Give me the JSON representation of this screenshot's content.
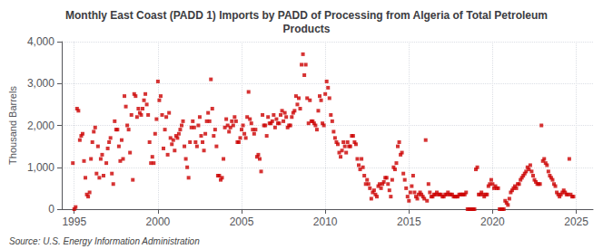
{
  "chart_data": {
    "type": "scatter",
    "title": "Monthly East Coast (PADD 1) Imports by PADD of Processing from Algeria of Total Petroleum\nProducts",
    "ylabel": "Thousand Barrels",
    "annotations": [
      "Source: U.S. Energy Information Administration"
    ],
    "color": "#cc0000",
    "marker": "square",
    "grid": true,
    "xlim": [
      1994.25,
      2026.0
    ],
    "ylim": [
      0,
      4000
    ],
    "xticks": [
      1995,
      2000,
      2005,
      2010,
      2015,
      2020,
      2025
    ],
    "yticks": [
      0,
      {
        "value": 1000,
        "label": "1,000"
      },
      {
        "value": 2000,
        "label": "2,000"
      },
      {
        "value": 3000,
        "label": "3,000"
      },
      {
        "value": 4000,
        "label": "4,000"
      }
    ],
    "x": [
      1994.917,
      1995.0,
      1995.083,
      1995.167,
      1995.25,
      1995.333,
      1995.417,
      1995.5,
      1995.583,
      1995.667,
      1995.75,
      1995.833,
      1995.917,
      1996.0,
      1996.083,
      1996.167,
      1996.25,
      1996.333,
      1996.417,
      1996.5,
      1996.583,
      1996.667,
      1996.75,
      1996.917,
      1997.0,
      1997.083,
      1997.167,
      1997.25,
      1997.333,
      1997.417,
      1997.5,
      1997.583,
      1997.667,
      1997.75,
      1997.833,
      1997.917,
      1998.0,
      1998.083,
      1998.167,
      1998.25,
      1998.333,
      1998.417,
      1998.5,
      1998.583,
      1998.667,
      1998.75,
      1998.833,
      1998.917,
      1999.0,
      1999.083,
      1999.167,
      1999.25,
      1999.333,
      1999.417,
      1999.5,
      1999.583,
      1999.667,
      1999.75,
      1999.833,
      1999.917,
      2000.0,
      2000.083,
      2000.167,
      2000.25,
      2000.333,
      2000.417,
      2000.5,
      2000.583,
      2000.667,
      2000.75,
      2000.833,
      2000.917,
      2001.0,
      2001.083,
      2001.167,
      2001.25,
      2001.333,
      2001.417,
      2001.5,
      2001.583,
      2001.667,
      2001.75,
      2001.833,
      2001.917,
      2002.0,
      2002.083,
      2002.167,
      2002.25,
      2002.333,
      2002.417,
      2002.5,
      2002.583,
      2002.667,
      2002.75,
      2002.833,
      2002.917,
      2003.0,
      2003.083,
      2003.167,
      2003.25,
      2003.333,
      2003.417,
      2003.5,
      2003.583,
      2003.667,
      2003.75,
      2003.833,
      2003.917,
      2004.0,
      2004.083,
      2004.167,
      2004.25,
      2004.333,
      2004.417,
      2004.5,
      2004.583,
      2004.667,
      2004.75,
      2004.833,
      2004.917,
      2005.0,
      2005.083,
      2005.167,
      2005.25,
      2005.333,
      2005.417,
      2005.5,
      2005.583,
      2005.667,
      2005.75,
      2005.833,
      2005.917,
      2006.0,
      2006.083,
      2006.167,
      2006.25,
      2006.333,
      2006.417,
      2006.5,
      2006.583,
      2006.667,
      2006.75,
      2006.833,
      2006.917,
      2007.0,
      2007.083,
      2007.167,
      2007.25,
      2007.333,
      2007.417,
      2007.5,
      2007.583,
      2007.667,
      2007.75,
      2007.833,
      2007.917,
      2008.0,
      2008.083,
      2008.167,
      2008.25,
      2008.333,
      2008.417,
      2008.5,
      2008.583,
      2008.667,
      2008.75,
      2008.833,
      2008.917,
      2009.0,
      2009.083,
      2009.167,
      2009.25,
      2009.333,
      2009.417,
      2009.5,
      2009.583,
      2009.667,
      2009.75,
      2009.833,
      2009.917,
      2010.0,
      2010.083,
      2010.167,
      2010.25,
      2010.333,
      2010.417,
      2010.5,
      2010.583,
      2010.667,
      2010.75,
      2010.833,
      2010.917,
      2011.0,
      2011.083,
      2011.167,
      2011.25,
      2011.333,
      2011.417,
      2011.5,
      2011.583,
      2011.667,
      2011.75,
      2011.833,
      2011.917,
      2012.0,
      2012.083,
      2012.167,
      2012.25,
      2012.333,
      2012.417,
      2012.5,
      2012.583,
      2012.667,
      2012.75,
      2012.833,
      2012.917,
      2013.0,
      2013.083,
      2013.167,
      2013.25,
      2013.333,
      2013.417,
      2013.5,
      2013.583,
      2013.667,
      2013.75,
      2013.833,
      2013.917,
      2014.0,
      2014.083,
      2014.167,
      2014.25,
      2014.333,
      2014.417,
      2014.5,
      2014.583,
      2014.667,
      2014.75,
      2014.833,
      2014.917,
      2015.0,
      2015.083,
      2015.167,
      2015.25,
      2015.333,
      2015.417,
      2015.5,
      2015.583,
      2015.667,
      2015.75,
      2015.833,
      2015.917,
      2016.0,
      2016.083,
      2016.167,
      2016.25,
      2016.333,
      2016.417,
      2016.5,
      2016.583,
      2016.667,
      2016.75,
      2016.833,
      2016.917,
      2017.0,
      2017.083,
      2017.167,
      2017.25,
      2017.333,
      2017.417,
      2017.5,
      2017.583,
      2017.667,
      2017.75,
      2017.833,
      2017.917,
      2018.0,
      2018.083,
      2018.167,
      2018.25,
      2018.333,
      2018.417,
      2018.5,
      2018.583,
      2018.667,
      2018.75,
      2018.833,
      2018.917,
      2019.0,
      2019.083,
      2019.167,
      2019.25,
      2019.333,
      2019.417,
      2019.5,
      2019.583,
      2019.667,
      2019.75,
      2019.833,
      2019.917,
      2020.0,
      2020.083,
      2020.167,
      2020.25,
      2020.333,
      2020.417,
      2020.5,
      2020.583,
      2020.667,
      2020.75,
      2020.833,
      2020.917,
      2021.0,
      2021.083,
      2021.167,
      2021.25,
      2021.333,
      2021.417,
      2021.5,
      2021.583,
      2021.667,
      2021.75,
      2021.833,
      2021.917,
      2022.0,
      2022.083,
      2022.167,
      2022.25,
      2022.333,
      2022.417,
      2022.5,
      2022.583,
      2022.667,
      2022.75,
      2022.833,
      2022.917,
      2023.0,
      2023.083,
      2023.167,
      2023.25,
      2023.333,
      2023.417,
      2023.5,
      2023.583,
      2023.667,
      2023.75,
      2023.833,
      2023.917,
      2024.0,
      2024.083,
      2024.167,
      2024.25,
      2024.333,
      2024.417,
      2024.5,
      2024.583,
      2024.667,
      2024.75,
      2024.833
    ],
    "values": [
      1100,
      0,
      50,
      2400,
      2350,
      1650,
      1750,
      1800,
      1150,
      750,
      350,
      300,
      400,
      1200,
      1600,
      1850,
      1950,
      850,
      1500,
      750,
      1200,
      1300,
      800,
      1100,
      1450,
      1600,
      1700,
      850,
      600,
      2100,
      1900,
      1900,
      1500,
      1150,
      1650,
      1200,
      2700,
      2450,
      2000,
      1900,
      1350,
      2250,
      700,
      2750,
      2700,
      2200,
      2400,
      2300,
      2250,
      2400,
      2600,
      2750,
      2500,
      2250,
      1600,
      1100,
      1250,
      1100,
      1800,
      2150,
      3050,
      2600,
      2700,
      2250,
      1450,
      1900,
      2200,
      1300,
      2300,
      1700,
      1550,
      1650,
      1400,
      1750,
      1700,
      1800,
      1900,
      2000,
      2100,
      1500,
      1200,
      1000,
      750,
      1600,
      1950,
      2100,
      1950,
      1600,
      1500,
      2000,
      2200,
      1750,
      1600,
      1400,
      1800,
      2100,
      2300,
      2100,
      3100,
      2400,
      1750,
      1900,
      1500,
      800,
      800,
      700,
      750,
      1200,
      1950,
      2150,
      2000,
      1850,
      1950,
      2100,
      2000,
      2200,
      2100,
      1600,
      1600,
      1700,
      1900,
      2000,
      1800,
      1700,
      2200,
      2800,
      2150,
      2050,
      1900,
      1800,
      1900,
      1250,
      1300,
      1200,
      900,
      2250,
      2000,
      2000,
      1750,
      2200,
      2050,
      2050,
      2100,
      2250,
      1950,
      2150,
      2050,
      2050,
      2250,
      2350,
      2100,
      2300,
      2200,
      1950,
      2000,
      2000,
      2200,
      2300,
      2350,
      2700,
      2500,
      2650,
      2400,
      3450,
      3700,
      3200,
      3450,
      2650,
      2050,
      2600,
      2100,
      2100,
      2050,
      2000,
      1900,
      2350,
      2700,
      2600,
      2050,
      2000,
      2750,
      3050,
      2900,
      2650,
      2250,
      2100,
      1850,
      1700,
      1600,
      1550,
      1350,
      1250,
      1400,
      1600,
      1500,
      1350,
      1600,
      1500,
      1500,
      1750,
      1750,
      1600,
      1550,
      1200,
      1050,
      950,
      1200,
      1000,
      800,
      600,
      700,
      600,
      500,
      250,
      400,
      450,
      350,
      300,
      550,
      600,
      500,
      600,
      650,
      750,
      750,
      600,
      450,
      300,
      700,
      1000,
      950,
      1100,
      1500,
      1600,
      1300,
      1350,
      850,
      700,
      500,
      300,
      200,
      400,
      550,
      800,
      400,
      300,
      250,
      350,
      400,
      350,
      300,
      250,
      1650,
      200,
      600,
      400,
      300,
      300,
      350,
      350,
      400,
      350,
      350,
      350,
      300,
      300,
      350,
      350,
      400,
      350,
      350,
      350,
      300,
      300,
      300,
      300,
      350,
      350,
      350,
      350,
      350,
      400,
      0,
      0,
      0,
      0,
      0,
      0,
      950,
      1000,
      350,
      350,
      400,
      350,
      300,
      350,
      350,
      550,
      600,
      700,
      600,
      500,
      550,
      500,
      500,
      0,
      0,
      0,
      0,
      200,
      150,
      100,
      250,
      400,
      450,
      500,
      550,
      500,
      600,
      600,
      700,
      750,
      800,
      850,
      900,
      1000,
      950,
      1050,
      900,
      800,
      700,
      650,
      600,
      600,
      600,
      2000,
      1150,
      1200,
      1100,
      1050,
      900,
      800,
      750,
      700,
      600,
      550,
      400,
      350,
      300,
      350,
      400,
      450,
      400,
      350,
      350,
      1200,
      350,
      300,
      300
    ]
  }
}
